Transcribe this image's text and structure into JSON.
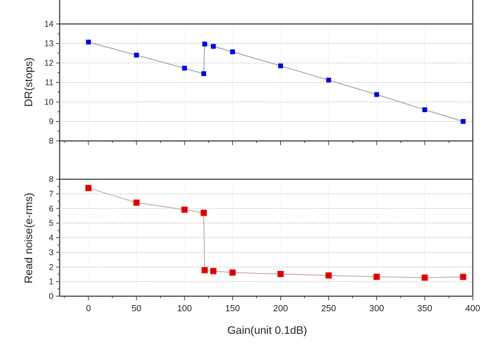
{
  "chart_data": [
    {
      "type": "line",
      "title": "",
      "xlabel": "Gain(unit 0.1dB)",
      "ylabel": "DR(stops)",
      "xlim": [
        -30,
        400
      ],
      "ylim": [
        8,
        14
      ],
      "xticks": [
        0,
        50,
        100,
        150,
        200,
        250,
        300,
        350,
        400
      ],
      "yticks": [
        8,
        9,
        10,
        11,
        12,
        13,
        14
      ],
      "grid": true,
      "series": [
        {
          "name": "DR",
          "color": "#0000e0",
          "x": [
            0,
            50,
            100,
            120,
            121,
            130,
            150,
            200,
            250,
            300,
            350,
            390
          ],
          "y": [
            13.07,
            12.4,
            11.73,
            11.45,
            12.97,
            12.85,
            12.57,
            11.85,
            11.12,
            10.38,
            9.6,
            9.0
          ]
        }
      ]
    },
    {
      "type": "line",
      "title": "",
      "xlabel": "Gain(unit 0.1dB)",
      "ylabel": "Read noise(e-rms)",
      "xlim": [
        -30,
        400
      ],
      "ylim": [
        0,
        8
      ],
      "xticks": [
        0,
        50,
        100,
        150,
        200,
        250,
        300,
        350,
        400
      ],
      "yticks": [
        0,
        1,
        2,
        3,
        4,
        5,
        6,
        7,
        8
      ],
      "grid": true,
      "series": [
        {
          "name": "Read noise",
          "color": "#e00000",
          "x": [
            0,
            50,
            100,
            120,
            121,
            130,
            150,
            200,
            250,
            300,
            350,
            390
          ],
          "y": [
            7.4,
            6.4,
            5.92,
            5.7,
            1.78,
            1.72,
            1.62,
            1.52,
            1.42,
            1.33,
            1.27,
            1.32
          ]
        }
      ]
    }
  ]
}
